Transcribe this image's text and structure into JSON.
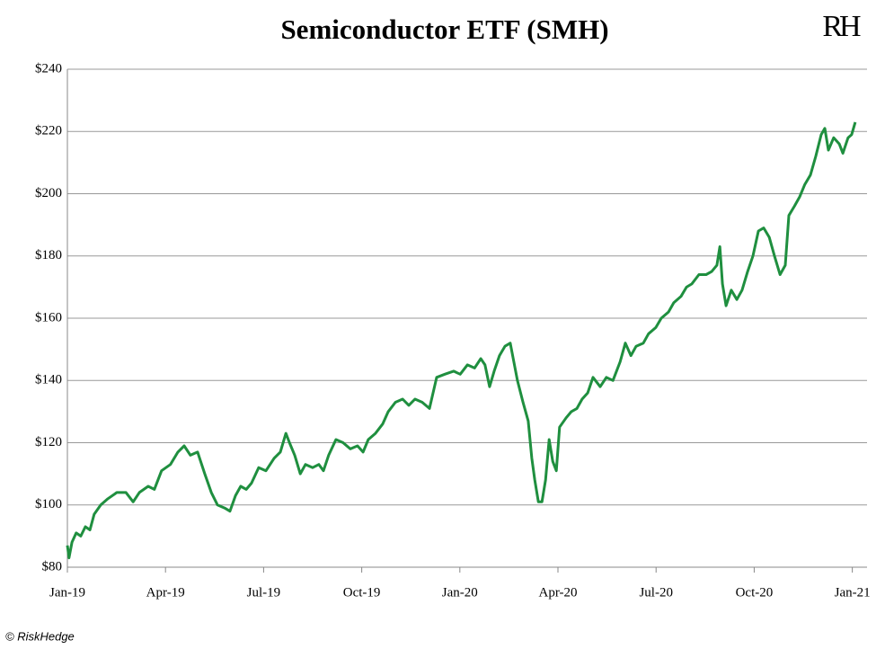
{
  "chart_data": {
    "type": "line",
    "title": "Semiconductor ETF (SMH)",
    "logo": "RH",
    "footer": "© RiskHedge",
    "x": [
      0,
      0.05,
      0.14,
      0.27,
      0.41,
      0.55,
      0.69,
      0.82,
      1.02,
      1.24,
      1.51,
      1.79,
      2.01,
      2.2,
      2.47,
      2.66,
      2.88,
      3.15,
      3.38,
      3.57,
      3.76,
      3.98,
      4.2,
      4.4,
      4.59,
      4.81,
      4.97,
      5.14,
      5.3,
      5.47,
      5.63,
      5.85,
      6.07,
      6.32,
      6.51,
      6.68,
      6.79,
      6.95,
      7.12,
      7.28,
      7.5,
      7.69,
      7.83,
      7.99,
      8.21,
      8.43,
      8.65,
      8.87,
      9.04,
      9.2,
      9.42,
      9.64,
      9.81,
      10.03,
      10.25,
      10.44,
      10.63,
      10.85,
      11.07,
      11.29,
      11.54,
      11.81,
      12.01,
      12.23,
      12.45,
      12.64,
      12.77,
      12.91,
      13.05,
      13.21,
      13.38,
      13.54,
      13.65,
      13.76,
      13.93,
      14.09,
      14.2,
      14.29,
      14.4,
      14.51,
      14.62,
      14.73,
      14.84,
      14.95,
      15.05,
      15.25,
      15.41,
      15.58,
      15.74,
      15.91,
      16.07,
      16.29,
      16.48,
      16.68,
      16.9,
      17.06,
      17.23,
      17.39,
      17.61,
      17.77,
      17.99,
      18.16,
      18.38,
      18.54,
      18.76,
      18.93,
      19.09,
      19.31,
      19.53,
      19.7,
      19.86,
      19.95,
      20.03,
      20.14,
      20.3,
      20.47,
      20.63,
      20.8,
      20.96,
      21.13,
      21.29,
      21.46,
      21.62,
      21.79,
      21.95,
      22.06,
      22.23,
      22.39,
      22.55,
      22.72,
      22.88,
      23.05,
      23.16,
      23.27,
      23.43,
      23.6,
      23.71,
      23.87,
      23.98,
      24.09
    ],
    "series": [
      {
        "name": "SMH",
        "color": "#1f8f3f",
        "values": [
          87,
          83,
          88,
          91,
          90,
          93,
          92,
          97,
          100,
          102,
          104,
          104,
          101,
          104,
          106,
          105,
          111,
          113,
          117,
          119,
          116,
          117,
          110,
          104,
          100,
          99,
          98,
          103,
          106,
          105,
          107,
          112,
          111,
          115,
          117,
          123,
          120,
          116,
          110,
          113,
          112,
          113,
          111,
          116,
          121,
          120,
          118,
          119,
          117,
          121,
          123,
          126,
          130,
          133,
          134,
          132,
          134,
          133,
          131,
          141,
          142,
          143,
          142,
          145,
          144,
          147,
          145,
          138,
          143,
          148,
          151,
          152,
          146,
          140,
          133,
          127,
          115,
          108,
          101,
          101,
          108,
          121,
          114,
          111,
          125,
          128,
          130,
          131,
          134,
          136,
          141,
          138,
          141,
          140,
          146,
          152,
          148,
          151,
          152,
          155,
          157,
          160,
          162,
          165,
          167,
          170,
          171,
          174,
          174,
          175,
          177,
          183,
          171,
          164,
          169,
          166,
          169,
          175,
          180,
          188,
          189,
          186,
          180,
          174,
          177,
          193,
          196,
          199,
          203,
          206,
          212,
          219,
          221,
          214,
          218,
          216,
          213,
          218,
          219,
          223
        ]
      }
    ],
    "xlim": [
      0,
      24.45
    ],
    "xticks": [
      {
        "value": 0,
        "label": "Jan-19"
      },
      {
        "value": 3,
        "label": "Apr-19"
      },
      {
        "value": 6,
        "label": "Jul-19"
      },
      {
        "value": 9,
        "label": "Oct-19"
      },
      {
        "value": 12,
        "label": "Jan-20"
      },
      {
        "value": 15,
        "label": "Apr-20"
      },
      {
        "value": 18,
        "label": "Jul-20"
      },
      {
        "value": 21,
        "label": "Oct-20"
      },
      {
        "value": 24,
        "label": "Jan-21"
      }
    ],
    "ylim": [
      80,
      240
    ],
    "yticks": [
      {
        "value": 80,
        "label": "$80"
      },
      {
        "value": 100,
        "label": "$100"
      },
      {
        "value": 120,
        "label": "$120"
      },
      {
        "value": 140,
        "label": "$140"
      },
      {
        "value": 160,
        "label": "$160"
      },
      {
        "value": 180,
        "label": "$180"
      },
      {
        "value": 200,
        "label": "$200"
      },
      {
        "value": 220,
        "label": "$220"
      },
      {
        "value": 240,
        "label": "$240"
      }
    ],
    "grid": true
  }
}
